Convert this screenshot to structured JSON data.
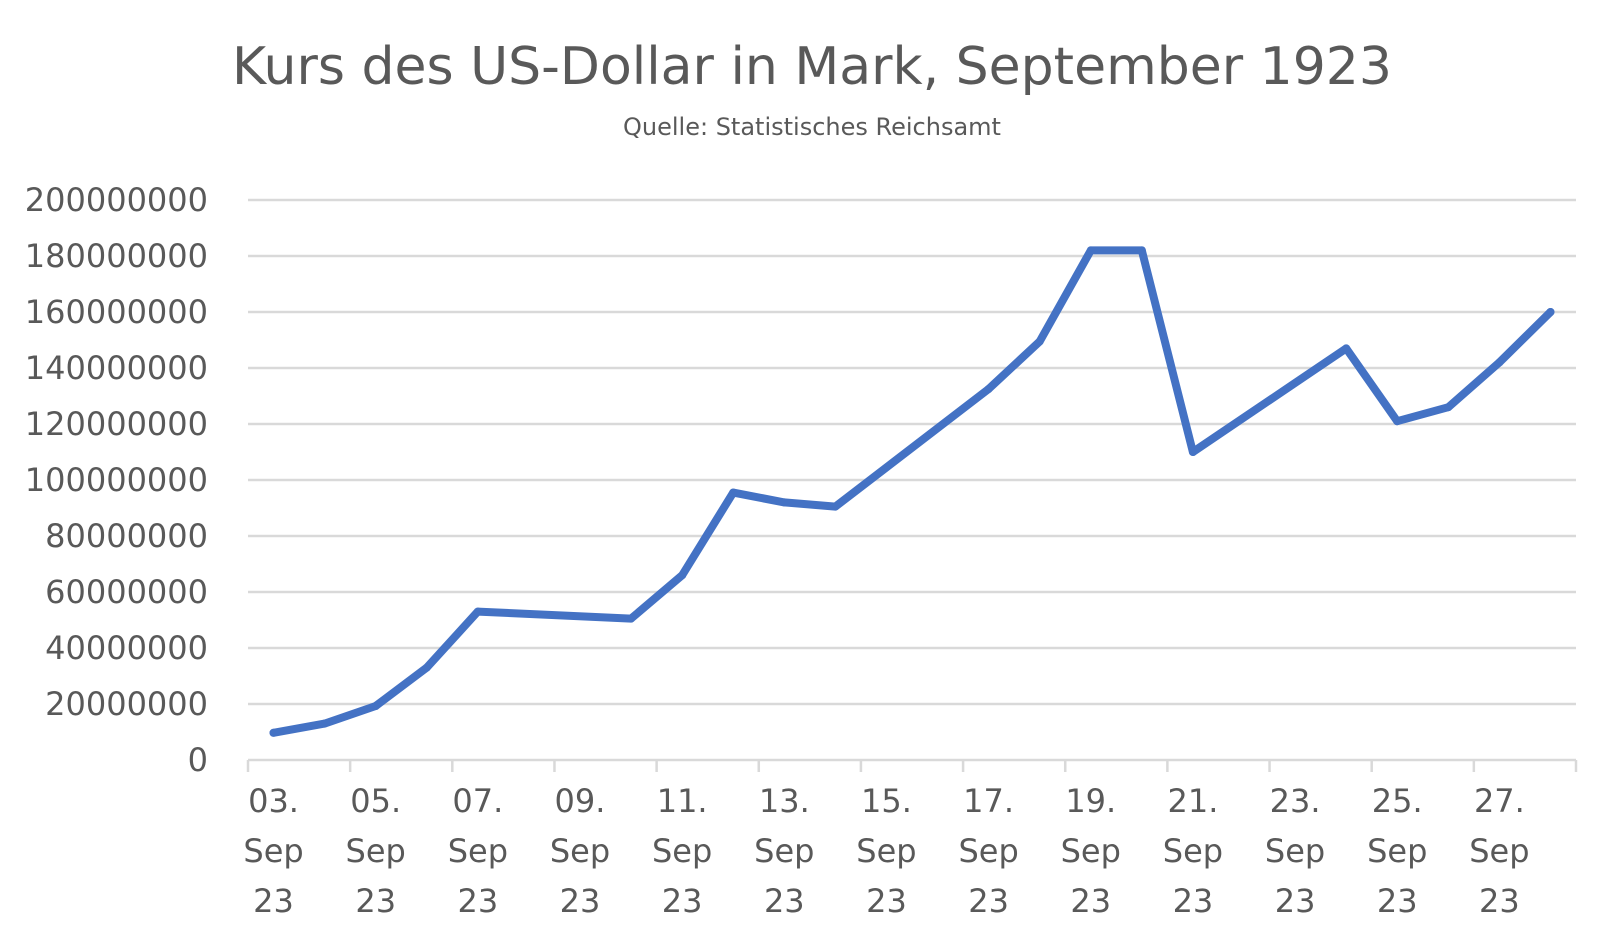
{
  "chart_data": {
    "type": "line",
    "title": "Kurs des US-Dollar in Mark, September 1923",
    "subtitle": "Quelle: Statistisches Reichsamt",
    "xlabel": "",
    "ylabel": "",
    "ylim": [
      0,
      200000000
    ],
    "yticks": [
      "200000000",
      "180000000",
      "160000000",
      "140000000",
      "120000000",
      "100000000",
      "80000000",
      "60000000",
      "40000000",
      "20000000",
      "0"
    ],
    "ytick_values": [
      200000000,
      180000000,
      160000000,
      140000000,
      120000000,
      100000000,
      80000000,
      60000000,
      40000000,
      20000000,
      0
    ],
    "x_tick_labels": [
      [
        "03.",
        "Sep",
        "23"
      ],
      [
        "05.",
        "Sep",
        "23"
      ],
      [
        "07.",
        "Sep",
        "23"
      ],
      [
        "09.",
        "Sep",
        "23"
      ],
      [
        "11.",
        "Sep",
        "23"
      ],
      [
        "13.",
        "Sep",
        "23"
      ],
      [
        "15.",
        "Sep",
        "23"
      ],
      [
        "17.",
        "Sep",
        "23"
      ],
      [
        "19.",
        "Sep",
        "23"
      ],
      [
        "21.",
        "Sep",
        "23"
      ],
      [
        "23.",
        "Sep",
        "23"
      ],
      [
        "25.",
        "Sep",
        "23"
      ],
      [
        "27.",
        "Sep",
        "23"
      ]
    ],
    "x_range": [
      "1923-09-03",
      "1923-09-28"
    ],
    "grid": true,
    "line_color": "#4472C4",
    "series": [
      {
        "x": [
          "1923-09-03",
          "1923-09-04",
          "1923-09-05",
          "1923-09-06",
          "1923-09-07",
          "1923-09-10",
          "1923-09-11",
          "1923-09-12",
          "1923-09-13",
          "1923-09-14",
          "1923-09-17",
          "1923-09-18",
          "1923-09-19",
          "1923-09-20",
          "1923-09-21",
          "1923-09-24",
          "1923-09-25",
          "1923-09-26",
          "1923-09-27",
          "1923-09-28"
        ],
        "values": [
          9700000,
          13000000,
          19300000,
          33000000,
          53000000,
          50500000,
          66000000,
          95500000,
          92000000,
          90500000,
          132500000,
          149500000,
          182000000,
          182000000,
          110000000,
          147000000,
          121000000,
          126000000,
          142000000,
          160000000
        ]
      }
    ]
  }
}
